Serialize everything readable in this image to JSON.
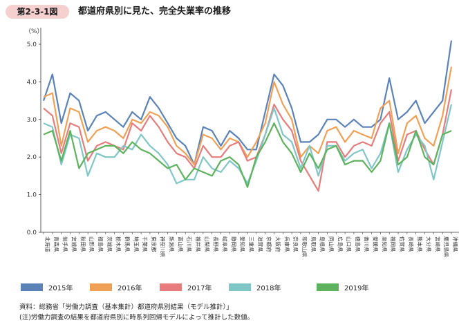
{
  "figure": {
    "badge": "第2-3-1図",
    "title": "都道府県別に見た、完全失業率の推移"
  },
  "notes": {
    "source": "資料：総務省「労働力調査（基本集計）都道府県別結果（モデル推計）」",
    "note": "(注)労働力調査の結果を都道府県別に時系列回帰モデルによって推計した数値。"
  },
  "chart_data": {
    "type": "line",
    "unit_label": "（%）",
    "ylim": [
      0,
      5.0
    ],
    "yticks": [
      "0.0",
      "1.0",
      "2.0",
      "3.0",
      "4.0",
      "5.0"
    ],
    "grid": false,
    "legend_position": "bottom",
    "categories": [
      "北海道",
      "青森県",
      "岩手県",
      "宮城県",
      "秋田県",
      "山形県",
      "福島県",
      "茨城県",
      "栃木県",
      "群馬県",
      "埼玉県",
      "千葉県",
      "東京都",
      "神奈川県",
      "新潟県",
      "富山県",
      "石川県",
      "福井県",
      "山梨県",
      "長野県",
      "岐阜県",
      "静岡県",
      "愛知県",
      "三重県",
      "滋賀県",
      "京都府",
      "大阪府",
      "兵庫県",
      "奈良県",
      "和歌山県",
      "鳥取県",
      "島根県",
      "岡山県",
      "広島県",
      "山口県",
      "徳島県",
      "香川県",
      "愛媛県",
      "高知県",
      "福岡県",
      "佐賀県",
      "長崎県",
      "熊本県",
      "大分県",
      "宮崎県",
      "鹿児島県",
      "沖縄県"
    ],
    "series": [
      {
        "name": "2015年",
        "color": "#5a82b8",
        "values": [
          3.5,
          4.2,
          2.9,
          3.7,
          3.5,
          2.7,
          3.1,
          3.2,
          3.0,
          2.8,
          3.2,
          3.0,
          3.6,
          3.3,
          2.9,
          2.5,
          2.3,
          1.8,
          2.8,
          2.7,
          2.3,
          2.7,
          2.5,
          2.2,
          2.2,
          3.2,
          4.2,
          3.9,
          3.3,
          2.4,
          2.4,
          2.6,
          3.0,
          3.0,
          2.8,
          3.0,
          2.8,
          2.8,
          3.0,
          4.1,
          3.0,
          3.2,
          3.5,
          2.9,
          3.2,
          3.5,
          5.1
        ]
      },
      {
        "name": "2016年",
        "color": "#f0a055",
        "values": [
          3.6,
          3.7,
          2.3,
          3.3,
          3.2,
          2.4,
          2.7,
          2.8,
          2.7,
          2.5,
          3.0,
          2.9,
          3.2,
          3.1,
          2.8,
          2.3,
          2.1,
          1.8,
          2.6,
          2.5,
          2.2,
          2.5,
          2.4,
          2.0,
          2.4,
          2.9,
          4.0,
          3.4,
          3.0,
          2.0,
          2.3,
          2.1,
          2.7,
          2.8,
          2.4,
          2.7,
          2.6,
          2.5,
          3.3,
          3.5,
          2.1,
          2.9,
          3.1,
          2.5,
          2.3,
          3.1,
          4.4
        ]
      },
      {
        "name": "2017年",
        "color": "#e87c7c",
        "values": [
          3.3,
          3.1,
          2.1,
          2.9,
          2.8,
          1.9,
          2.3,
          2.4,
          2.3,
          2.2,
          2.9,
          2.7,
          3.1,
          2.8,
          2.4,
          2.1,
          2.0,
          1.7,
          2.3,
          2.0,
          2.0,
          2.3,
          2.4,
          1.9,
          2.0,
          2.6,
          3.4,
          3.0,
          2.7,
          1.9,
          1.5,
          1.1,
          2.4,
          2.4,
          2.0,
          2.3,
          2.4,
          2.3,
          2.9,
          3.2,
          1.9,
          2.6,
          2.7,
          2.2,
          1.8,
          2.6,
          3.8
        ]
      },
      {
        "name": "2018年",
        "color": "#7fc6c6",
        "values": [
          2.9,
          2.8,
          1.8,
          2.6,
          2.5,
          1.5,
          2.1,
          2.0,
          2.0,
          2.3,
          2.2,
          2.6,
          2.3,
          2.1,
          1.8,
          1.3,
          1.4,
          1.4,
          2.0,
          1.7,
          1.6,
          1.9,
          1.7,
          1.3,
          1.9,
          2.6,
          3.3,
          2.6,
          2.4,
          1.7,
          2.3,
          1.5,
          2.3,
          2.3,
          1.9,
          2.1,
          2.2,
          1.7,
          2.1,
          2.9,
          1.6,
          2.2,
          2.6,
          2.3,
          1.4,
          2.4,
          3.4
        ]
      },
      {
        "name": "2019年",
        "color": "#5cb35c",
        "values": [
          2.6,
          2.7,
          1.9,
          2.7,
          1.7,
          2.1,
          2.2,
          2.3,
          2.3,
          2.1,
          2.4,
          2.2,
          2.1,
          1.9,
          1.7,
          1.8,
          1.4,
          1.7,
          1.6,
          1.5,
          1.9,
          2.0,
          1.8,
          1.2,
          2.0,
          2.4,
          2.9,
          2.4,
          2.1,
          1.6,
          2.1,
          1.7,
          2.2,
          2.3,
          1.8,
          1.9,
          1.9,
          1.6,
          1.9,
          2.9,
          1.8,
          2.0,
          2.7,
          2.0,
          1.8,
          2.6,
          2.7
        ]
      }
    ]
  }
}
